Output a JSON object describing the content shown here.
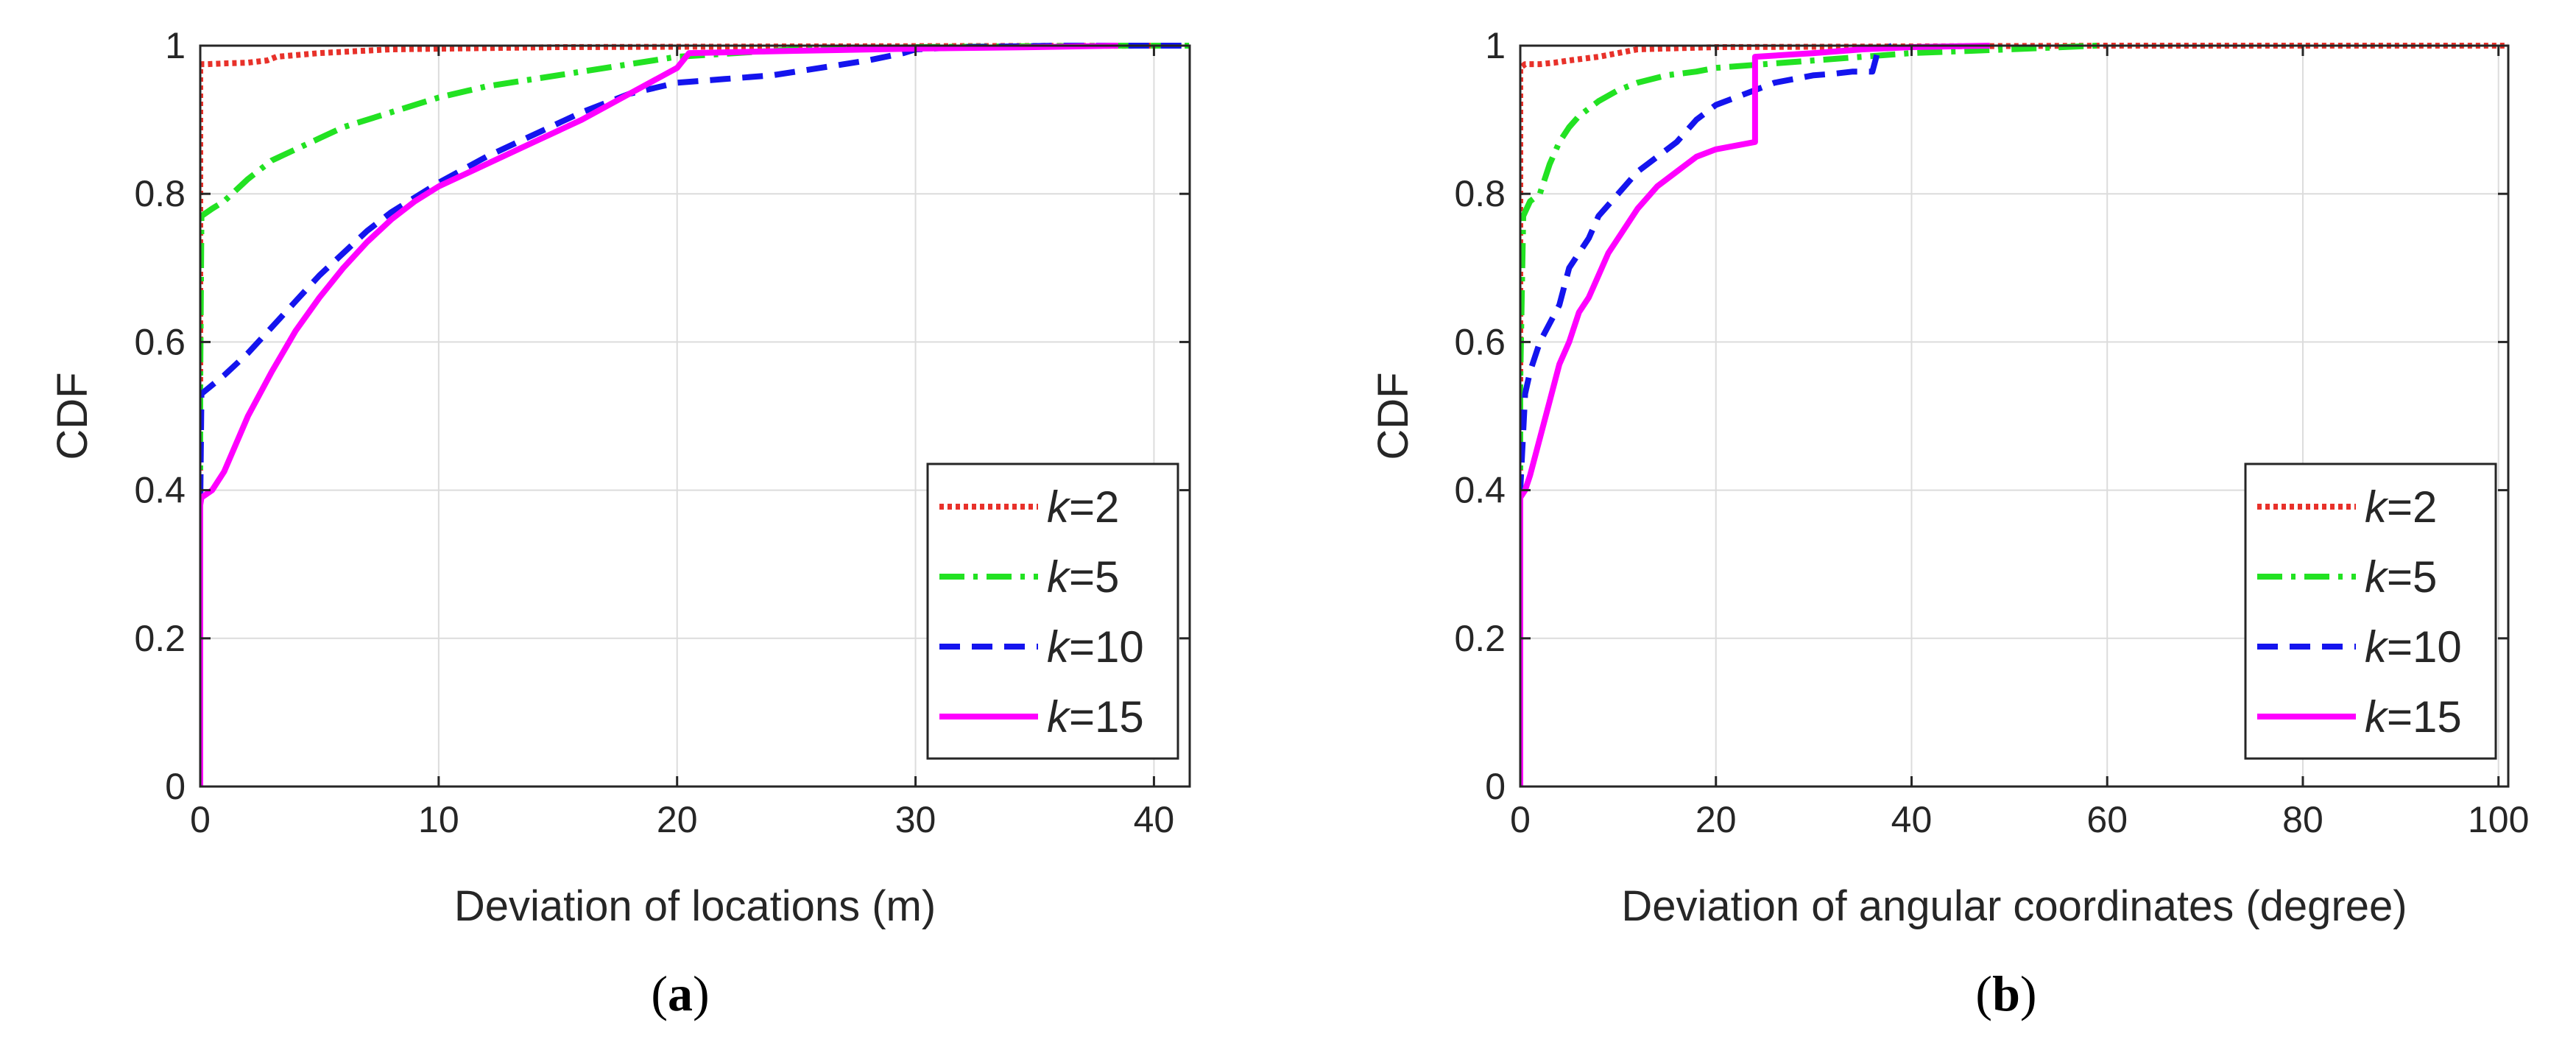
{
  "chart_data": [
    {
      "type": "line",
      "panel_label": "(a)",
      "title": "",
      "xlabel": "Deviation of locations (m)",
      "ylabel": "CDF",
      "xlim": [
        0,
        41.5
      ],
      "ylim": [
        0,
        1
      ],
      "xticks": [
        0,
        10,
        20,
        30,
        40
      ],
      "yticks": [
        0,
        0.2,
        0.4,
        0.6,
        0.8,
        1
      ],
      "grid": true,
      "legend_position": "bottom-right",
      "series": [
        {
          "name": "k=2",
          "k_value": "2",
          "color": "#e8312a",
          "style": "dotted",
          "x": [
            0,
            0,
            0.05,
            0.3,
            1.0,
            2.0,
            2.8,
            3.2,
            5,
            8,
            15,
            25,
            40
          ],
          "y": [
            0,
            0.97,
            0.975,
            0.975,
            0.976,
            0.977,
            0.98,
            0.985,
            0.99,
            0.995,
            0.998,
            0.999,
            1.0
          ]
        },
        {
          "name": "k=5",
          "k_value": "5",
          "color": "#22e222",
          "style": "dashdot",
          "x": [
            0,
            0,
            0.05,
            0.5,
            1,
            2,
            3,
            4,
            5,
            6,
            8,
            10,
            12,
            14,
            16,
            18,
            20,
            25,
            30,
            38,
            41.5
          ],
          "y": [
            0,
            0.55,
            0.77,
            0.78,
            0.79,
            0.82,
            0.845,
            0.86,
            0.875,
            0.89,
            0.91,
            0.93,
            0.945,
            0.955,
            0.965,
            0.975,
            0.985,
            0.995,
            0.998,
            1.0,
            1.0
          ]
        },
        {
          "name": "k=10",
          "k_value": "10",
          "color": "#1414ee",
          "style": "dashed",
          "x": [
            0,
            0,
            0.05,
            1,
            2,
            3,
            4,
            5,
            6,
            7,
            8,
            10,
            12,
            14,
            16,
            18,
            20,
            22,
            24,
            26,
            28,
            29.5,
            30,
            32,
            36,
            40,
            41.5
          ],
          "y": [
            0,
            0.38,
            0.53,
            0.555,
            0.585,
            0.62,
            0.655,
            0.69,
            0.72,
            0.75,
            0.775,
            0.815,
            0.85,
            0.88,
            0.91,
            0.935,
            0.95,
            0.955,
            0.96,
            0.97,
            0.98,
            0.99,
            0.995,
            0.998,
            1.0,
            1.0,
            1.0
          ]
        },
        {
          "name": "k=15",
          "k_value": "15",
          "color": "#ff00ff",
          "style": "solid",
          "x": [
            0,
            0,
            0.05,
            0.5,
            1,
            2,
            3,
            4,
            5,
            6,
            7,
            8,
            9,
            10,
            12,
            14,
            16,
            18,
            20,
            20.5,
            25,
            30,
            35,
            38.5
          ],
          "y": [
            0,
            0.38,
            0.39,
            0.4,
            0.425,
            0.5,
            0.56,
            0.615,
            0.66,
            0.7,
            0.735,
            0.765,
            0.79,
            0.81,
            0.84,
            0.87,
            0.9,
            0.935,
            0.97,
            0.99,
            0.993,
            0.996,
            0.998,
            1.0
          ]
        }
      ]
    },
    {
      "type": "line",
      "panel_label": "(b)",
      "title": "",
      "xlabel": "Deviation of angular coordinates (degree)",
      "ylabel": "CDF",
      "xlim": [
        0,
        101
      ],
      "ylim": [
        0,
        1
      ],
      "xticks": [
        0,
        20,
        40,
        60,
        80,
        100
      ],
      "yticks": [
        0,
        0.2,
        0.4,
        0.6,
        0.8,
        1
      ],
      "grid": true,
      "legend_position": "bottom-right",
      "series": [
        {
          "name": "k=2",
          "k_value": "2",
          "color": "#e8312a",
          "style": "dotted",
          "x": [
            0,
            0,
            0.5,
            2,
            3.5,
            5,
            8,
            10,
            12,
            20,
            40,
            60,
            101
          ],
          "y": [
            0,
            0.97,
            0.975,
            0.975,
            0.977,
            0.98,
            0.985,
            0.99,
            0.995,
            0.998,
            0.999,
            1.0,
            1.0
          ]
        },
        {
          "name": "k=5",
          "k_value": "5",
          "color": "#22e222",
          "style": "dashdot",
          "x": [
            0,
            0,
            0.3,
            1,
            2,
            3,
            4,
            5,
            6,
            8,
            10,
            12,
            15,
            18,
            20,
            25,
            30,
            35,
            40,
            50,
            59
          ],
          "y": [
            0,
            0.55,
            0.77,
            0.79,
            0.8,
            0.84,
            0.87,
            0.89,
            0.905,
            0.925,
            0.94,
            0.95,
            0.96,
            0.965,
            0.97,
            0.975,
            0.98,
            0.985,
            0.99,
            0.995,
            1.0
          ]
        },
        {
          "name": "k=10",
          "k_value": "10",
          "color": "#1414ee",
          "style": "dashed",
          "x": [
            0,
            0,
            0.5,
            1,
            2,
            3,
            4,
            5,
            6,
            7,
            8,
            10,
            12,
            14,
            16,
            18,
            20,
            22,
            24,
            26,
            28,
            30,
            32,
            34,
            36,
            36.5,
            38
          ],
          "y": [
            0,
            0.4,
            0.53,
            0.56,
            0.6,
            0.625,
            0.65,
            0.7,
            0.72,
            0.74,
            0.77,
            0.8,
            0.83,
            0.85,
            0.87,
            0.9,
            0.92,
            0.93,
            0.94,
            0.95,
            0.955,
            0.96,
            0.962,
            0.965,
            0.965,
            0.99,
            1.0
          ]
        },
        {
          "name": "k=15",
          "k_value": "15",
          "color": "#ff00ff",
          "style": "solid",
          "x": [
            0,
            0,
            0.5,
            1,
            2,
            3,
            4,
            5,
            6,
            7,
            8,
            9,
            10,
            12,
            14,
            16,
            18,
            20,
            22,
            24,
            24,
            30,
            35,
            40,
            48
          ],
          "y": [
            0,
            0.39,
            0.4,
            0.42,
            0.47,
            0.52,
            0.57,
            0.6,
            0.64,
            0.66,
            0.69,
            0.72,
            0.74,
            0.78,
            0.81,
            0.83,
            0.85,
            0.86,
            0.865,
            0.87,
            0.985,
            0.99,
            0.995,
            0.998,
            1.0
          ]
        }
      ]
    }
  ]
}
